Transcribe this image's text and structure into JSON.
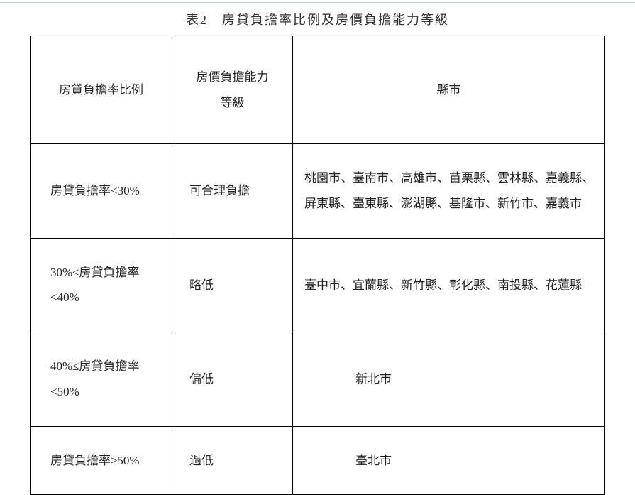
{
  "title": "表2　房貸負擔率比例及房價負擔能力等級",
  "columns": {
    "ratio": "房貸負擔率比例",
    "level": "房價負擔能力\n等級",
    "city": "縣市"
  },
  "rows": [
    {
      "ratio": "房貸負擔率<30%",
      "level": "可合理負擔",
      "city": "桃園市、臺南市、高雄市、苗栗縣、雲林縣、嘉義縣、屏東縣、臺東縣、澎湖縣、基隆市、新竹市、嘉義市",
      "city_indent": false
    },
    {
      "ratio": "30%≤房貸負擔率<40%",
      "level": "略低",
      "city": "臺中市、宜蘭縣、新竹縣、彰化縣、南投縣、花蓮縣",
      "city_indent": false
    },
    {
      "ratio": "40%≤房貸負擔率<50%",
      "level": "偏低",
      "city": "新北市",
      "city_indent": true
    },
    {
      "ratio": "房貸負擔率≥50%",
      "level": "過低",
      "city": "臺北市",
      "city_indent": true
    }
  ],
  "colors": {
    "rule": "#b8d4e3",
    "border": "#000000",
    "text": "#222222",
    "background": "#ffffff"
  }
}
